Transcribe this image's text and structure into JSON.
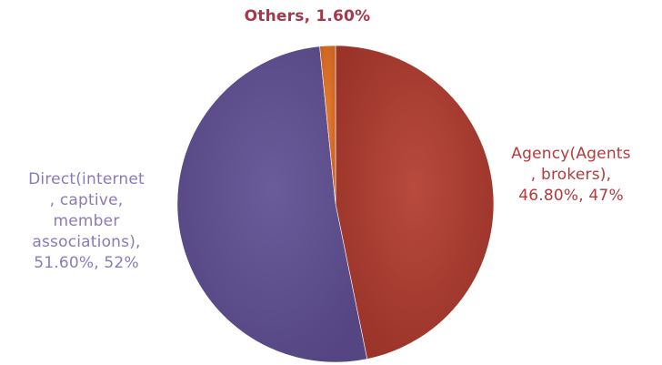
{
  "chart_data": {
    "type": "pie",
    "slices": [
      {
        "name": "Agency(Agents, brokers)",
        "value": 46.8,
        "label": "Agency(Agents\n, brokers),\n46.80%, 47%",
        "color": "#a33a30"
      },
      {
        "name": "Direct(internet, captive, member associations)",
        "value": 51.6,
        "label": "Direct(internet\n, captive,\nmember\nassociations),\n51.60%, 52%",
        "color": "#5e4f8e"
      },
      {
        "name": "Others",
        "value": 1.6,
        "label": "Others, 1.60%",
        "color": "#d86f27"
      }
    ]
  }
}
